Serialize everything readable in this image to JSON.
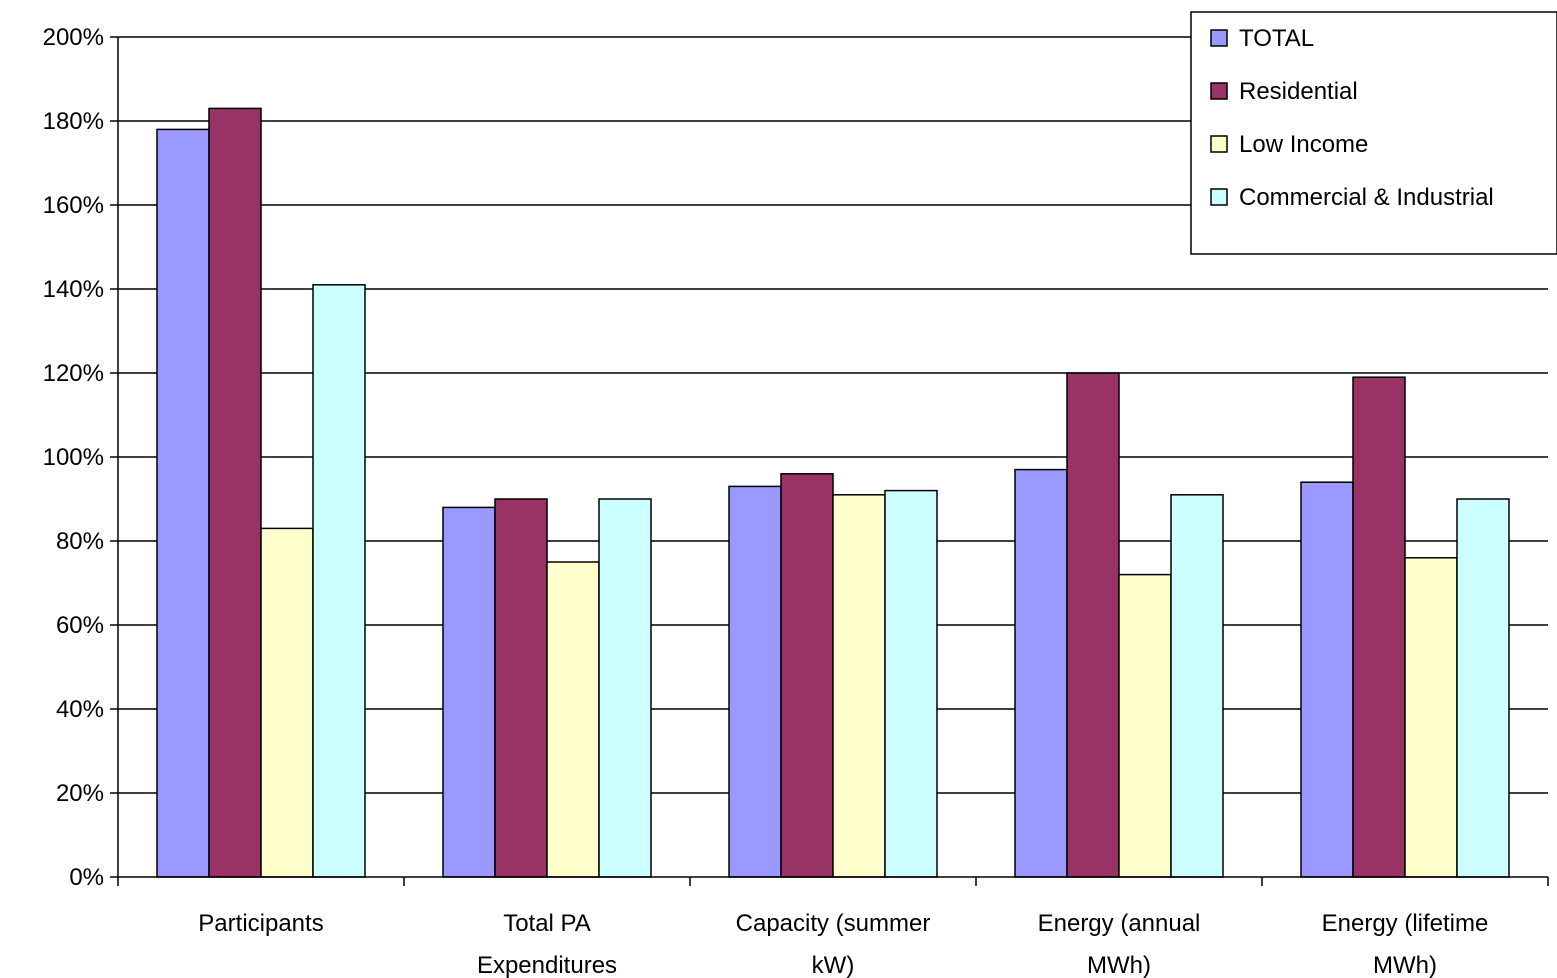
{
  "chart_data": {
    "type": "bar",
    "title": "",
    "xlabel": "",
    "ylabel": "",
    "ylim": [
      0,
      200
    ],
    "ytick_step": 20,
    "ytick_suffix": "%",
    "grid": true,
    "legend_position": "top-right",
    "categories": [
      [
        "Participants"
      ],
      [
        "Total PA",
        "Expenditures"
      ],
      [
        "Capacity (summer",
        "kW)"
      ],
      [
        "Energy (annual",
        "MWh)"
      ],
      [
        "Energy (lifetime",
        "MWh)"
      ]
    ],
    "series": [
      {
        "name": "TOTAL",
        "color": "#9999ff",
        "values": [
          178,
          88,
          93,
          97,
          94
        ]
      },
      {
        "name": "Residential",
        "color": "#993366",
        "values": [
          183,
          90,
          96,
          120,
          119
        ]
      },
      {
        "name": "Low Income",
        "color": "#ffffcc",
        "values": [
          83,
          75,
          91,
          72,
          76
        ]
      },
      {
        "name": "Commercial & Industrial",
        "color": "#ccffff",
        "values": [
          141,
          90,
          92,
          91,
          90
        ]
      }
    ]
  }
}
